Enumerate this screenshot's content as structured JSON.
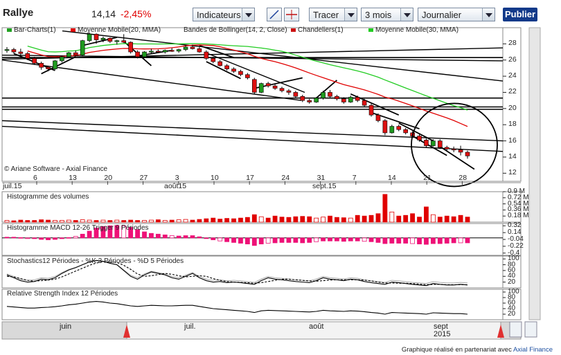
{
  "toolbar": {
    "title": "Rallye",
    "price": "14,14",
    "change": "-2,45",
    "change_pct": "%",
    "indicators_label": "Indicateurs",
    "draw_label": "Tracer",
    "range_label": "3 mois",
    "period_label": "Journalier",
    "publish_label": "Publier"
  },
  "legend": [
    {
      "label": "Bar-Charts(1)",
      "color": "#20a020"
    },
    {
      "label": "Moyenne Mobile(20, MMA)",
      "color": "#e00000"
    },
    {
      "label": "Bandes de Bollinger(14, 2, Close)",
      "color": ""
    },
    {
      "label": "Chandeliers(1)",
      "color": "#cc1111"
    },
    {
      "label": "Moyenne Mobile(30, MMA)",
      "color": "#22cc22"
    }
  ],
  "copyright": "© Ariane Software - Axial Finance",
  "panes": {
    "volume_title": "Histogramme des volumes",
    "macd_title": "Histogramme MACD 12-26 Trigger 9 Périodes",
    "stoch_title": "Stochastics12 Périodes - %K 3 Périodes - %D 5 Périodes",
    "rsi_title": "Relative Strength Index 12 Périodes"
  },
  "chart_data": {
    "type": "candlestick",
    "price_axis": {
      "ticks": [
        "12",
        "14",
        "16",
        "18",
        "20",
        "22",
        "24",
        "26",
        "28"
      ],
      "ylim": [
        11,
        30
      ]
    },
    "date_ticks": [
      "6",
      "13",
      "20",
      "27",
      "3",
      "10",
      "17",
      "24",
      "31",
      "7",
      "14",
      "21",
      "28"
    ],
    "month_labels": [
      "juil.15",
      "août15",
      "sept.15"
    ],
    "candles": [
      [
        27.2,
        27.6,
        26.9,
        27.3
      ],
      [
        27.3,
        27.5,
        26.8,
        27.0
      ],
      [
        27.0,
        27.4,
        26.6,
        26.8
      ],
      [
        26.8,
        27.0,
        26.0,
        26.2
      ],
      [
        26.2,
        26.4,
        25.4,
        25.6
      ],
      [
        25.6,
        25.8,
        24.8,
        25.1
      ],
      [
        25.1,
        25.3,
        24.6,
        24.9
      ],
      [
        24.9,
        26.0,
        24.8,
        25.9
      ],
      [
        25.9,
        26.5,
        25.7,
        26.4
      ],
      [
        26.4,
        27.0,
        26.3,
        26.9
      ],
      [
        26.9,
        27.2,
        26.5,
        26.6
      ],
      [
        26.6,
        28.5,
        26.5,
        28.4
      ],
      [
        28.4,
        29.4,
        28.2,
        29.2
      ],
      [
        29.2,
        29.3,
        28.0,
        28.5
      ],
      [
        28.5,
        28.9,
        28.2,
        28.7
      ],
      [
        28.7,
        28.8,
        28.1,
        28.3
      ],
      [
        28.3,
        28.5,
        27.9,
        28.4
      ],
      [
        28.4,
        29.2,
        28.1,
        28.2
      ],
      [
        28.2,
        28.3,
        26.8,
        27.0
      ],
      [
        27.0,
        27.2,
        26.2,
        26.4
      ],
      [
        26.4,
        27.1,
        26.3,
        27.0
      ],
      [
        27.0,
        27.4,
        26.8,
        27.1
      ],
      [
        27.1,
        27.3,
        26.9,
        27.0
      ],
      [
        27.0,
        27.3,
        26.8,
        27.2
      ],
      [
        27.2,
        27.5,
        27.0,
        27.1
      ],
      [
        27.1,
        27.4,
        26.9,
        27.3
      ],
      [
        27.3,
        27.8,
        27.1,
        27.6
      ],
      [
        27.6,
        27.9,
        27.3,
        27.4
      ],
      [
        27.4,
        27.6,
        26.9,
        27.0
      ],
      [
        27.0,
        27.2,
        26.0,
        26.2
      ],
      [
        26.2,
        26.4,
        25.6,
        25.8
      ],
      [
        25.8,
        26.0,
        25.2,
        25.3
      ],
      [
        25.3,
        25.5,
        24.7,
        24.9
      ],
      [
        24.9,
        25.1,
        24.4,
        24.6
      ],
      [
        24.6,
        24.8,
        24.0,
        24.2
      ],
      [
        24.2,
        24.4,
        23.6,
        23.8
      ],
      [
        23.6,
        23.8,
        21.8,
        22.0
      ],
      [
        22.0,
        23.2,
        21.9,
        23.1
      ],
      [
        23.1,
        23.3,
        22.6,
        22.8
      ],
      [
        22.8,
        23.0,
        22.3,
        22.5
      ],
      [
        22.5,
        22.7,
        22.0,
        22.2
      ],
      [
        22.2,
        22.4,
        21.7,
        22.0
      ],
      [
        22.0,
        22.2,
        21.3,
        21.5
      ],
      [
        21.5,
        21.7,
        20.8,
        21.0
      ],
      [
        21.0,
        21.2,
        20.6,
        20.8
      ],
      [
        20.8,
        21.4,
        20.7,
        21.3
      ],
      [
        21.3,
        22.2,
        21.1,
        22.0
      ],
      [
        22.0,
        22.3,
        21.3,
        21.5
      ],
      [
        21.5,
        21.7,
        21.0,
        21.2
      ],
      [
        21.2,
        21.4,
        20.6,
        20.8
      ],
      [
        20.8,
        21.6,
        20.7,
        21.4
      ],
      [
        21.4,
        21.6,
        20.8,
        21.0
      ],
      [
        21.0,
        21.2,
        20.2,
        20.4
      ],
      [
        20.4,
        20.6,
        19.0,
        19.2
      ],
      [
        19.2,
        19.4,
        18.3,
        18.5
      ],
      [
        18.5,
        18.7,
        16.7,
        17.0
      ],
      [
        17.0,
        18.0,
        16.9,
        17.8
      ],
      [
        17.8,
        18.0,
        17.2,
        17.4
      ],
      [
        17.4,
        17.6,
        16.8,
        17.0
      ],
      [
        17.0,
        17.2,
        16.4,
        16.6
      ],
      [
        16.6,
        16.8,
        15.9,
        16.1
      ],
      [
        16.1,
        16.3,
        15.2,
        15.4
      ],
      [
        15.4,
        16.2,
        15.3,
        16.0
      ],
      [
        16.0,
        16.2,
        15.0,
        15.2
      ],
      [
        15.2,
        15.4,
        14.8,
        15.0
      ],
      [
        15.0,
        15.3,
        14.6,
        14.9
      ],
      [
        14.9,
        15.4,
        14.2,
        14.6
      ],
      [
        14.6,
        14.8,
        13.8,
        14.14
      ]
    ],
    "volume_axis": [
      "0.9 M",
      "0.72 M",
      "0.54 M",
      "0.36 M",
      "0.18 M"
    ],
    "volumes": [
      0.05,
      0.04,
      0.06,
      0.05,
      0.05,
      0.07,
      0.06,
      0.05,
      0.05,
      0.06,
      0.05,
      0.07,
      0.06,
      0.05,
      0.06,
      0.05,
      0.06,
      0.05,
      0.06,
      0.05,
      0.05,
      0.06,
      0.07,
      0.05,
      0.06,
      0.07,
      0.08,
      0.06,
      0.08,
      0.1,
      0.12,
      0.09,
      0.11,
      0.1,
      0.12,
      0.14,
      0.22,
      0.16,
      0.12,
      0.18,
      0.15,
      0.14,
      0.16,
      0.17,
      0.16,
      0.12,
      0.15,
      0.18,
      0.14,
      0.13,
      0.12,
      0.2,
      0.18,
      0.2,
      0.25,
      0.82,
      0.3,
      0.18,
      0.2,
      0.25,
      0.15,
      0.45,
      0.22,
      0.15,
      0.18,
      0.16,
      0.2,
      0.15
    ],
    "macd_axis": [
      "0.32",
      "0.14",
      "-0.04",
      "-0.22",
      "-0.4"
    ],
    "macd": [
      0.02,
      0.02,
      0.01,
      0.0,
      -0.02,
      -0.04,
      -0.05,
      -0.04,
      -0.02,
      0.01,
      0.04,
      0.1,
      0.18,
      0.26,
      0.3,
      0.32,
      0.33,
      0.32,
      0.28,
      0.22,
      0.16,
      0.12,
      0.1,
      0.08,
      0.06,
      0.05,
      0.06,
      0.06,
      0.03,
      -0.01,
      -0.05,
      -0.08,
      -0.1,
      -0.12,
      -0.14,
      -0.16,
      -0.2,
      -0.16,
      -0.14,
      -0.13,
      -0.12,
      -0.12,
      -0.12,
      -0.13,
      -0.12,
      -0.1,
      -0.08,
      -0.08,
      -0.08,
      -0.09,
      -0.08,
      -0.08,
      -0.09,
      -0.1,
      -0.12,
      -0.15,
      -0.14,
      -0.14,
      -0.14,
      -0.15,
      -0.16,
      -0.17,
      -0.15,
      -0.15,
      -0.14,
      -0.13,
      -0.13,
      -0.13
    ],
    "oscillator_axis": [
      "100",
      "80",
      "60",
      "40",
      "20"
    ],
    "stoch_k": [
      45,
      35,
      25,
      20,
      22,
      30,
      28,
      35,
      50,
      62,
      70,
      80,
      90,
      95,
      92,
      85,
      80,
      60,
      40,
      30,
      45,
      55,
      50,
      45,
      35,
      30,
      40,
      50,
      35,
      25,
      20,
      22,
      18,
      20,
      18,
      15,
      12,
      25,
      35,
      30,
      28,
      25,
      22,
      20,
      18,
      25,
      35,
      30,
      28,
      25,
      30,
      28,
      22,
      18,
      15,
      12,
      20,
      18,
      15,
      12,
      10,
      8,
      15,
      12,
      10,
      10,
      12,
      10
    ],
    "stoch_d": [
      40,
      38,
      32,
      26,
      23,
      25,
      27,
      30,
      38,
      48,
      58,
      68,
      78,
      86,
      90,
      90,
      88,
      78,
      64,
      48,
      40,
      42,
      46,
      50,
      47,
      42,
      38,
      40,
      42,
      40,
      32,
      26,
      22,
      20,
      19,
      18,
      16,
      18,
      22,
      26,
      30,
      30,
      28,
      26,
      24,
      23,
      25,
      27,
      28,
      28,
      28,
      28,
      27,
      24,
      20,
      17,
      17,
      16,
      16,
      15,
      13,
      11,
      12,
      12,
      11,
      11,
      11,
      11
    ],
    "rsi": [
      48,
      46,
      44,
      42,
      42,
      44,
      45,
      47,
      50,
      54,
      56,
      60,
      64,
      66,
      64,
      60,
      58,
      54,
      50,
      48,
      50,
      52,
      51,
      50,
      50,
      51,
      52,
      52,
      48,
      44,
      40,
      38,
      36,
      34,
      32,
      30,
      26,
      32,
      34,
      33,
      32,
      31,
      30,
      29,
      28,
      30,
      34,
      32,
      31,
      30,
      32,
      31,
      29,
      26,
      24,
      20,
      26,
      25,
      24,
      23,
      22,
      20,
      25,
      24,
      23,
      22,
      22,
      20
    ],
    "overview_months": [
      "juin",
      "juil.",
      "août",
      "sept\n2015"
    ]
  },
  "credit_text": "Graphique réalisé en partenariat avec",
  "credit_brand": "Axial Finance"
}
